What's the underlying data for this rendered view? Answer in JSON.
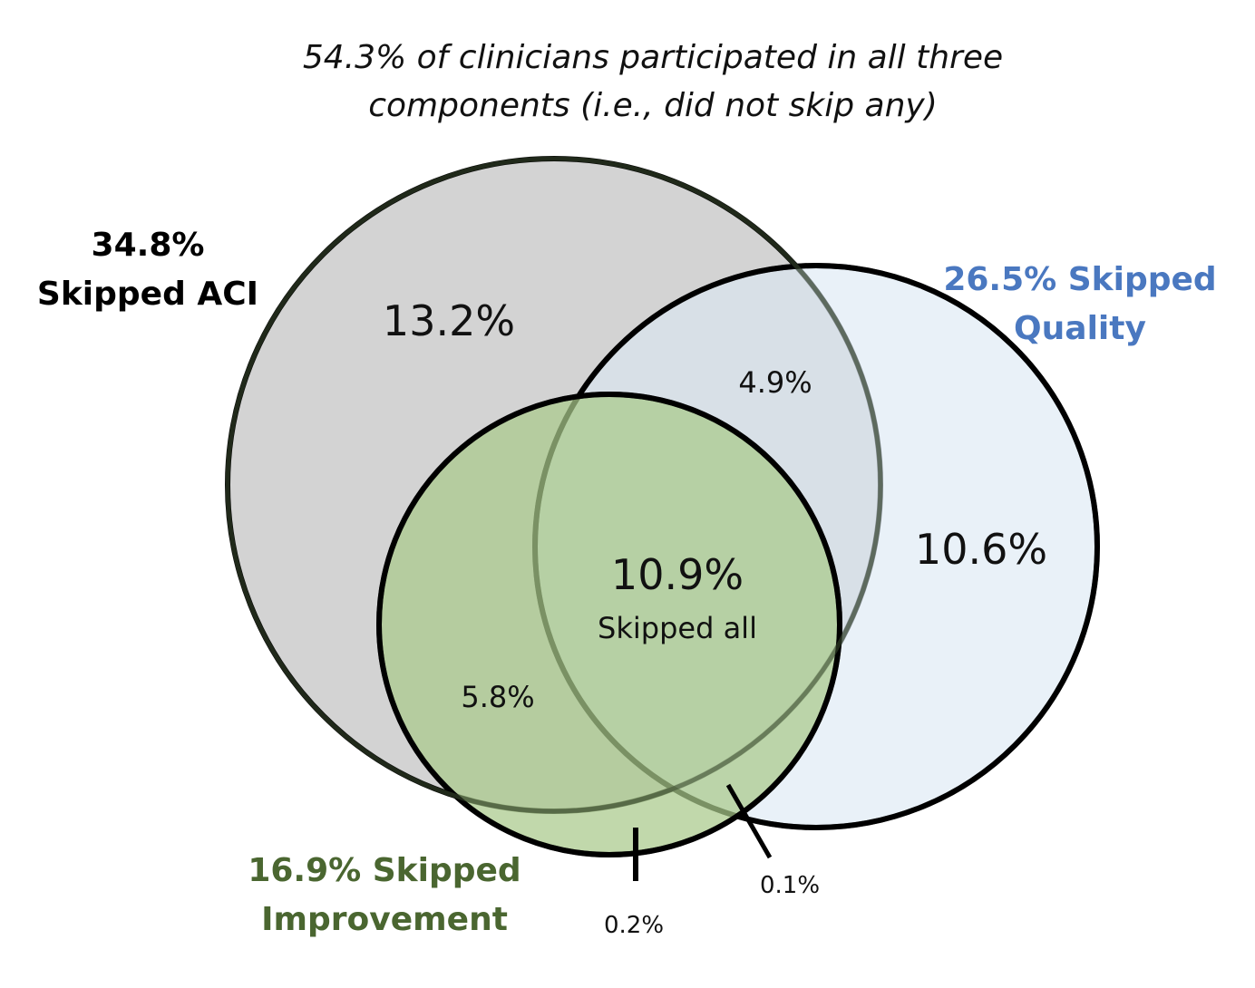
{
  "title": {
    "line1": "54.3% of clinicians participated in all three",
    "line2": "components (i.e., did not skip any)"
  },
  "sets": {
    "aci": {
      "label_line1": "34.8%",
      "label_line2": "Skipped ACI",
      "fill": "#d3d3d3",
      "text_color": "#000000"
    },
    "quality": {
      "label_line1": "26.5% Skipped",
      "label_line2": "Quality",
      "fill": "#dce8f4",
      "text_color": "#4a78c0"
    },
    "improvement": {
      "label_line1": "16.9% Skipped",
      "label_line2": "Improvement",
      "fill": "#a9c98a",
      "text_color": "#4a6630"
    }
  },
  "regions": {
    "aci_only": "13.2%",
    "aci_quality": "4.9%",
    "quality_only": "10.6%",
    "all_three": "10.9%",
    "all_three_caption": "Skipped all",
    "aci_improvement": "5.8%",
    "improvement_only": "0.2%",
    "quality_improvement": "0.1%"
  }
}
